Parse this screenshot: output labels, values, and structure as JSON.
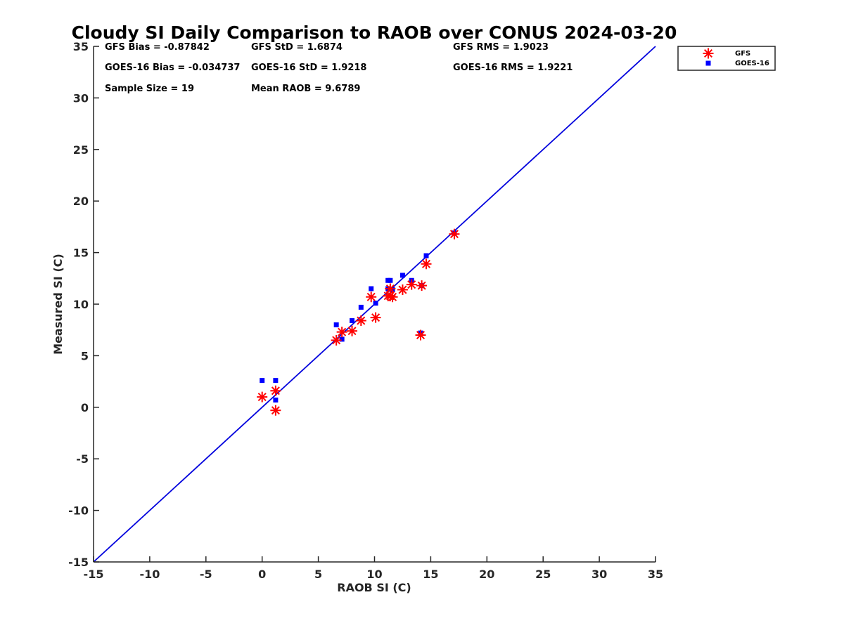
{
  "chart_data": {
    "type": "scatter",
    "title": "Cloudy SI Daily Comparison to RAOB over CONUS 2024-03-20",
    "xlabel": "RAOB SI (C)",
    "ylabel": "Measured SI (C)",
    "xlim": [
      -15,
      35
    ],
    "ylim": [
      -15,
      35
    ],
    "xticks": [
      "-15",
      "-10",
      "-5",
      "0",
      "5",
      "10",
      "15",
      "20",
      "25",
      "30",
      "35"
    ],
    "yticks": [
      "-15",
      "-10",
      "-5",
      "0",
      "5",
      "10",
      "15",
      "20",
      "25",
      "30",
      "35"
    ],
    "grid": false,
    "legend_position": "outside-top-right",
    "reference_line": {
      "from": [
        -15,
        -15
      ],
      "to": [
        35,
        35
      ],
      "color": "#0000dd"
    },
    "stats": {
      "gfs_bias": "GFS Bias = -0.87842",
      "gfs_std": "GFS StD = 1.6874",
      "gfs_rms": "GFS RMS = 1.9023",
      "goes_bias": "GOES-16 Bias = -0.034737",
      "goes_std": "GOES-16 StD = 1.9218",
      "goes_rms": "GOES-16 RMS = 1.9221",
      "sample_size": "Sample Size = 19",
      "mean_raob": "Mean RAOB = 9.6789"
    },
    "series": [
      {
        "name": "GFS",
        "marker": "asterisk",
        "color": "#ff0000",
        "points": [
          [
            0.0,
            1.0
          ],
          [
            1.2,
            1.6
          ],
          [
            1.2,
            -0.3
          ],
          [
            6.6,
            6.5
          ],
          [
            7.1,
            7.3
          ],
          [
            8.0,
            7.4
          ],
          [
            8.8,
            8.4
          ],
          [
            9.7,
            10.7
          ],
          [
            10.1,
            8.7
          ],
          [
            11.2,
            10.8
          ],
          [
            11.4,
            11.5
          ],
          [
            11.6,
            10.7
          ],
          [
            12.5,
            11.4
          ],
          [
            13.3,
            11.9
          ],
          [
            14.1,
            7.0
          ],
          [
            14.2,
            11.8
          ],
          [
            14.6,
            13.9
          ],
          [
            17.1,
            16.8
          ],
          [
            11.4,
            10.8
          ]
        ]
      },
      {
        "name": "GOES-16",
        "marker": "square",
        "color": "#0000ff",
        "points": [
          [
            0.0,
            2.6
          ],
          [
            1.2,
            2.6
          ],
          [
            1.2,
            0.7
          ],
          [
            6.6,
            8.0
          ],
          [
            7.1,
            6.6
          ],
          [
            8.0,
            8.4
          ],
          [
            8.8,
            9.7
          ],
          [
            9.7,
            11.5
          ],
          [
            10.1,
            10.1
          ],
          [
            11.2,
            12.3
          ],
          [
            11.4,
            12.3
          ],
          [
            11.2,
            11.5
          ],
          [
            11.6,
            11.4
          ],
          [
            12.5,
            12.8
          ],
          [
            13.3,
            12.3
          ],
          [
            14.1,
            7.2
          ],
          [
            14.2,
            11.8
          ],
          [
            14.6,
            14.7
          ],
          [
            17.1,
            16.9
          ]
        ]
      }
    ]
  }
}
